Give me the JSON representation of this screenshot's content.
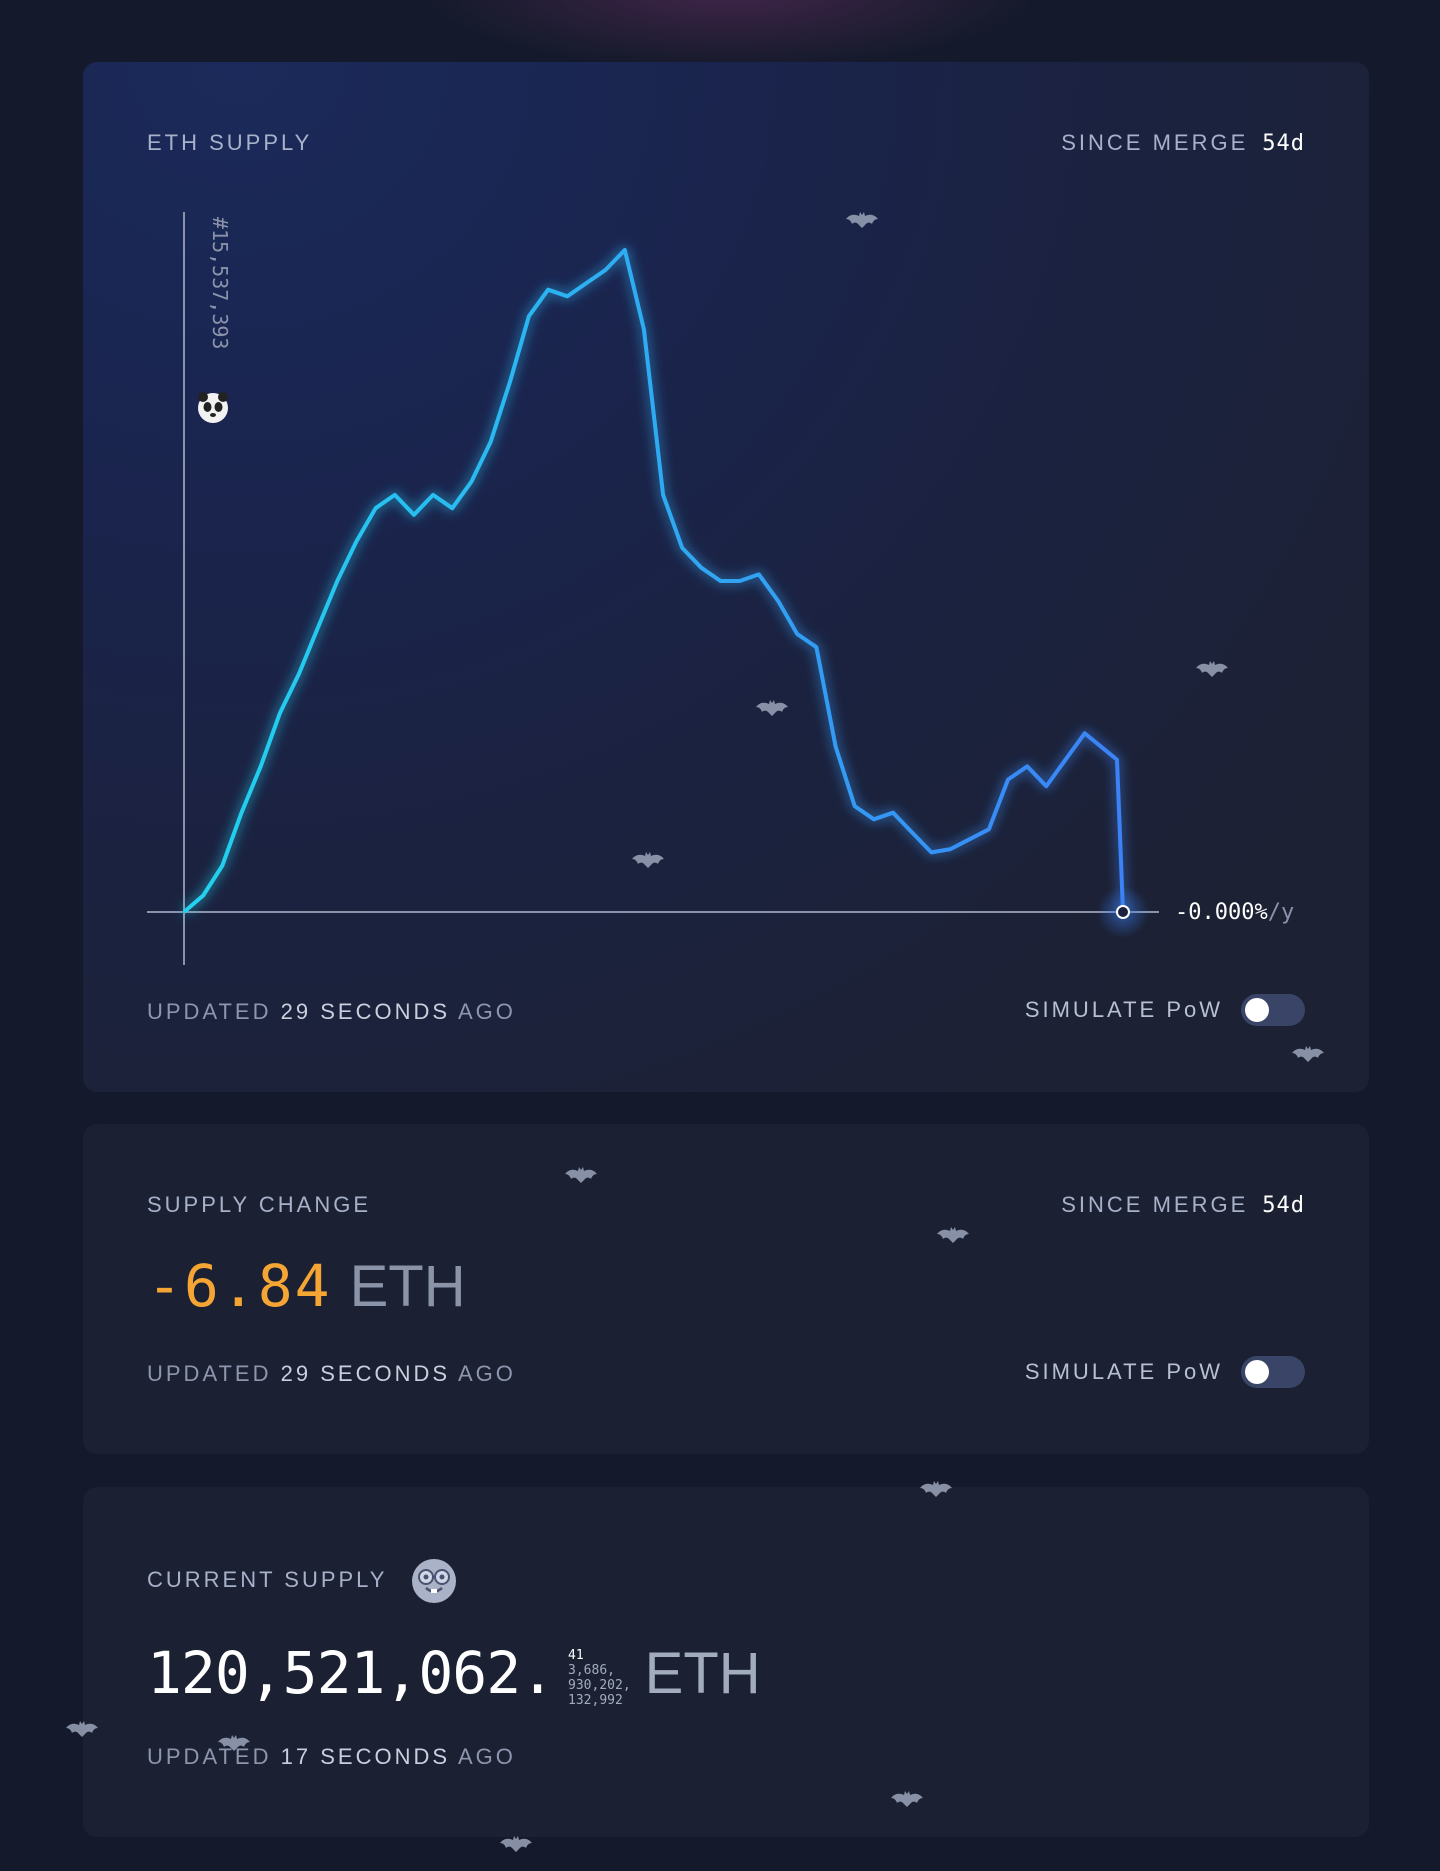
{
  "eth_supply_card": {
    "title": "ETH SUPPLY",
    "since_label": "SINCE MERGE",
    "since_value": "54d",
    "block_label": "#15,537,393",
    "rate_value": "-0.000%",
    "rate_unit": "/y",
    "updated_prefix": "UPDATED",
    "updated_value": "29",
    "updated_unit": "SECONDS",
    "updated_suffix": "AGO",
    "simulate_label": "SIMULATE PoW",
    "simulate_on": false
  },
  "supply_change_card": {
    "title": "SUPPLY CHANGE",
    "since_label": "SINCE MERGE",
    "since_value": "54d",
    "value": "-6.84",
    "unit": "ETH",
    "updated_prefix": "UPDATED",
    "updated_value": "29",
    "updated_unit": "SECONDS",
    "updated_suffix": "AGO",
    "simulate_label": "SIMULATE PoW",
    "simulate_on": false
  },
  "current_supply_card": {
    "title": "CURRENT SUPPLY",
    "integer": "120,521,062.",
    "decimals_line1_bright": "41",
    "decimals_line1_rest": "3,686,",
    "decimals_line2": "930,202,",
    "decimals_line3": "132,992",
    "unit": "ETH",
    "updated_prefix": "UPDATED",
    "updated_value": "17",
    "updated_unit": "SECONDS",
    "updated_suffix": "AGO"
  },
  "colors": {
    "line_start": "#22d3ee",
    "line_end": "#3b82f6",
    "negative": "#f5a534",
    "background": "#141a2b"
  },
  "chart_data": {
    "type": "line",
    "title": "ETH SUPPLY",
    "xlabel": "",
    "ylabel": "",
    "x_start_label": "#15,537,393",
    "end_label": "-0.000%/y",
    "values": [
      0,
      2.5,
      7,
      15,
      22,
      30,
      36,
      43,
      50,
      56,
      61,
      63,
      60,
      63,
      61,
      65,
      71,
      80,
      90,
      94,
      93,
      95,
      97,
      100,
      88,
      63,
      55,
      52,
      50,
      50,
      51,
      47,
      42,
      40,
      25,
      16,
      14,
      15,
      12,
      9,
      9.5,
      11,
      12.5,
      20,
      22,
      19,
      23,
      27,
      23,
      0
    ]
  },
  "decorations": {
    "bats": [
      "bat-icon",
      "bat-icon",
      "bat-icon",
      "bat-icon",
      "bat-icon",
      "bat-icon",
      "bat-icon",
      "bat-icon",
      "bat-icon",
      "bat-icon",
      "bat-icon",
      "bat-icon"
    ],
    "panda": "panda-icon",
    "nerd": "nerd-face-icon"
  }
}
